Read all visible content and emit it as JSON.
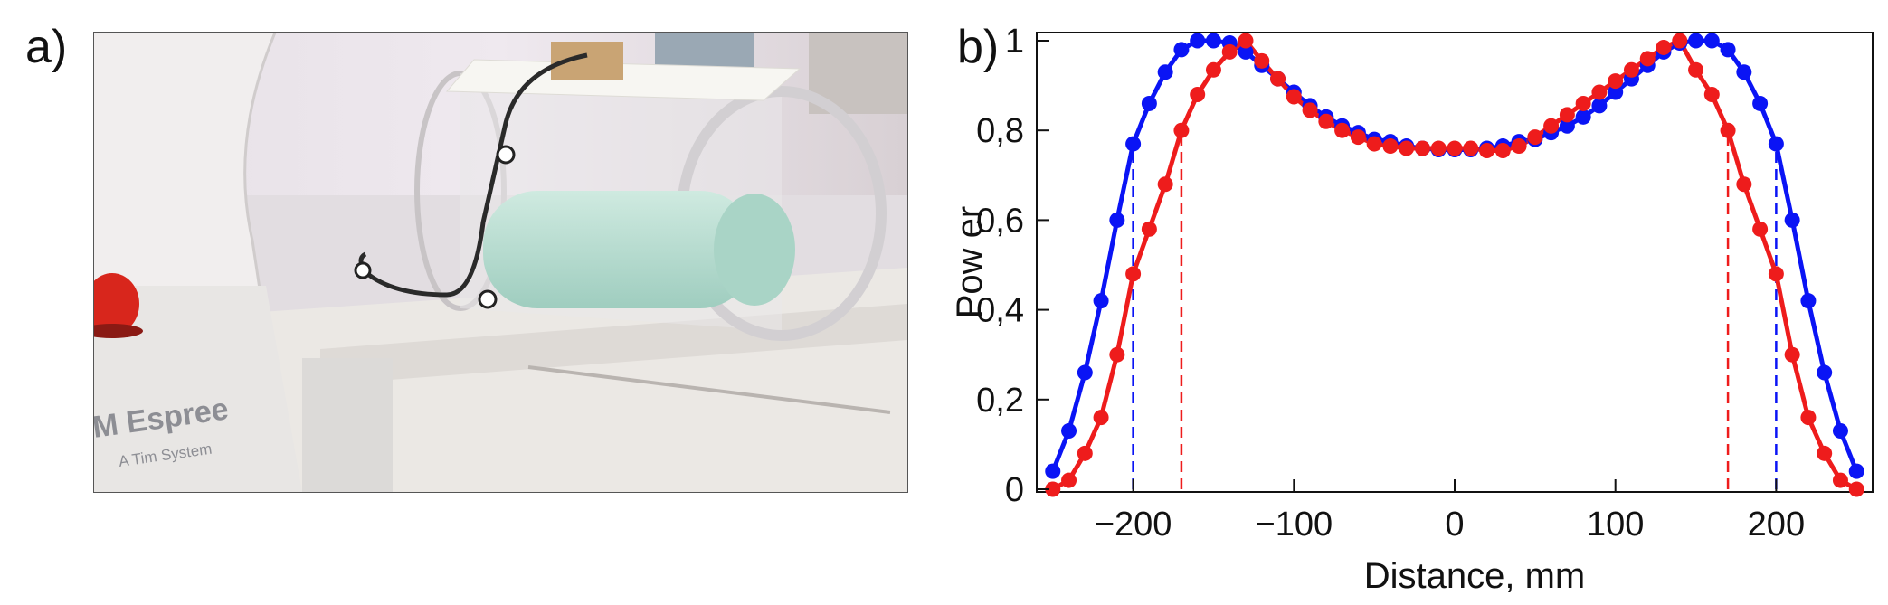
{
  "panel_a": {
    "label": "a)",
    "logo_main": "M Espree",
    "logo_sub": "A Tim System"
  },
  "panel_b": {
    "label": "b)"
  },
  "colors": {
    "blue": "#0a14f5",
    "red": "#ee1c1c"
  },
  "chart_data": {
    "type": "line",
    "title": "",
    "xlabel": "Distance, mm",
    "ylabel": "Pow er",
    "xlim": [
      -260,
      260
    ],
    "ylim": [
      0,
      1.05
    ],
    "xticks": [
      -200,
      -100,
      0,
      100,
      200
    ],
    "xtick_labels": [
      "−200",
      "−100",
      "0",
      "100",
      "200"
    ],
    "yticks": [
      0,
      0.2,
      0.4,
      0.6,
      0.8,
      1
    ],
    "ytick_labels": [
      "0",
      "0,2",
      "0,4",
      "0,6",
      "0,8",
      "1"
    ],
    "grid": false,
    "series": [
      {
        "name": "blue",
        "color": "#0a14f5",
        "x": [
          -250,
          -240,
          -230,
          -220,
          -210,
          -200,
          -190,
          -180,
          -170,
          -160,
          -150,
          -140,
          -130,
          -120,
          -110,
          -100,
          -90,
          -80,
          -70,
          -60,
          -50,
          -40,
          -30,
          -20,
          -10,
          0,
          10,
          20,
          30,
          40,
          50,
          60,
          70,
          80,
          90,
          100,
          110,
          120,
          130,
          140,
          150,
          160,
          170,
          180,
          190,
          200,
          210,
          220,
          230,
          240,
          250
        ],
        "values": [
          0.04,
          0.13,
          0.26,
          0.42,
          0.6,
          0.77,
          0.86,
          0.93,
          0.98,
          1.0,
          1.0,
          0.995,
          0.975,
          0.945,
          0.915,
          0.885,
          0.855,
          0.83,
          0.81,
          0.795,
          0.78,
          0.775,
          0.765,
          0.76,
          0.757,
          0.757,
          0.757,
          0.76,
          0.765,
          0.775,
          0.78,
          0.795,
          0.81,
          0.83,
          0.855,
          0.885,
          0.915,
          0.945,
          0.975,
          0.995,
          1.0,
          1.0,
          0.98,
          0.93,
          0.86,
          0.77,
          0.6,
          0.42,
          0.26,
          0.13,
          0.04
        ]
      },
      {
        "name": "red",
        "color": "#ee1c1c",
        "x": [
          -250,
          -240,
          -230,
          -220,
          -210,
          -200,
          -190,
          -180,
          -170,
          -160,
          -150,
          -140,
          -130,
          -120,
          -110,
          -100,
          -90,
          -80,
          -70,
          -60,
          -50,
          -40,
          -30,
          -20,
          -10,
          0,
          10,
          20,
          30,
          40,
          50,
          60,
          70,
          80,
          90,
          100,
          110,
          120,
          130,
          140,
          150,
          160,
          170,
          180,
          190,
          200,
          210,
          220,
          230,
          240,
          250
        ],
        "values": [
          0.0,
          0.02,
          0.08,
          0.16,
          0.3,
          0.48,
          0.58,
          0.68,
          0.8,
          0.88,
          0.935,
          0.975,
          1.0,
          0.955,
          0.915,
          0.875,
          0.845,
          0.82,
          0.8,
          0.785,
          0.77,
          0.765,
          0.76,
          0.76,
          0.76,
          0.76,
          0.76,
          0.755,
          0.755,
          0.765,
          0.785,
          0.81,
          0.835,
          0.86,
          0.885,
          0.91,
          0.935,
          0.96,
          0.985,
          1.0,
          0.935,
          0.88,
          0.8,
          0.68,
          0.58,
          0.48,
          0.3,
          0.16,
          0.08,
          0.02,
          0.0
        ]
      }
    ],
    "reference_lines": [
      {
        "x": -200,
        "color": "#0a14f5",
        "style": "dashed",
        "to_y": 0.77
      },
      {
        "x": 200,
        "color": "#0a14f5",
        "style": "dashed",
        "to_y": 0.77
      },
      {
        "x": -170,
        "color": "#ee1c1c",
        "style": "dashed",
        "to_y": 0.8
      },
      {
        "x": 170,
        "color": "#ee1c1c",
        "style": "dashed",
        "to_y": 0.8
      }
    ]
  }
}
